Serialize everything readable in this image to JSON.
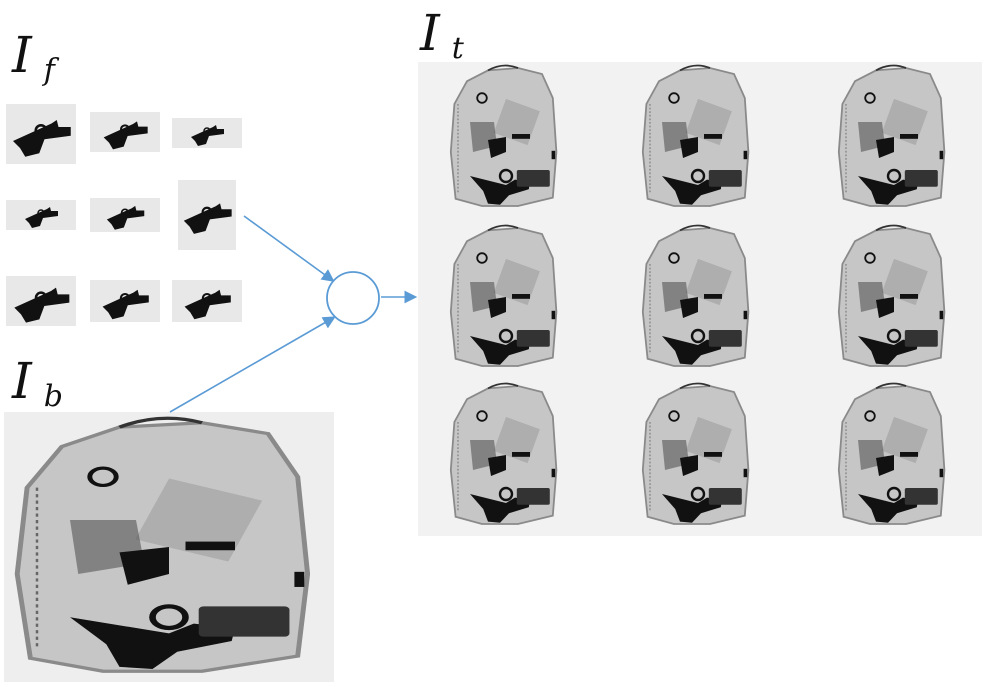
{
  "labels": {
    "foreground": {
      "main": "I",
      "sub": "f"
    },
    "background": {
      "main": "I",
      "sub": "b"
    },
    "target": {
      "main": "I",
      "sub": "t"
    }
  },
  "colors": {
    "arrow": "#5b9bd5",
    "panel_bg": "#eeeeee",
    "bag_body": "#c9c9c9",
    "object": "#141414"
  },
  "thumbnails": [
    "pistol",
    "pistol",
    "pistol",
    "pistol",
    "pistol",
    "pistol",
    "pistol",
    "pistol",
    "pistol"
  ],
  "composite_grid": {
    "rows": 3,
    "cols": 3
  }
}
